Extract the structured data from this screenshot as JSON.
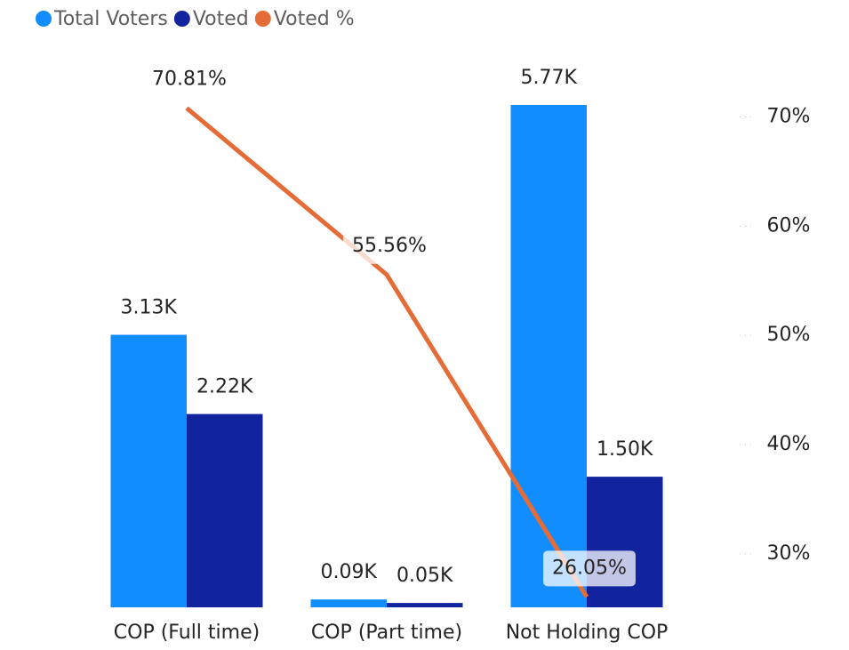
{
  "chart_data": {
    "type": "bar-line",
    "categories": [
      "COP (Full time)",
      "COP (Part time)",
      "Not Holding COP"
    ],
    "series": [
      {
        "name": "Total Voters",
        "color": "#118DFF",
        "type": "bar",
        "values": [
          3130,
          90,
          5770
        ],
        "value_labels": [
          "3.13K",
          "0.09K",
          "5.77K"
        ]
      },
      {
        "name": "Voted",
        "color": "#12239E",
        "type": "bar",
        "values": [
          2220,
          50,
          1500
        ],
        "value_labels": [
          "2.22K",
          "0.05K",
          "1.50K"
        ]
      },
      {
        "name": "Voted %",
        "color": "#E66C37",
        "type": "line",
        "axis": "y2",
        "values": [
          70.81,
          55.56,
          26.05
        ],
        "value_labels": [
          "70.81%",
          "55.56%",
          "26.05%"
        ]
      }
    ],
    "ylim": [
      0,
      5770
    ],
    "y2lim": [
      25.1,
      71.1
    ],
    "y2ticks": [
      {
        "value": 30,
        "label": "30%"
      },
      {
        "value": 40,
        "label": "40%"
      },
      {
        "value": 50,
        "label": "50%"
      },
      {
        "value": 60,
        "label": "60%"
      },
      {
        "value": 70,
        "label": "70%"
      }
    ],
    "legend": "top-left"
  }
}
